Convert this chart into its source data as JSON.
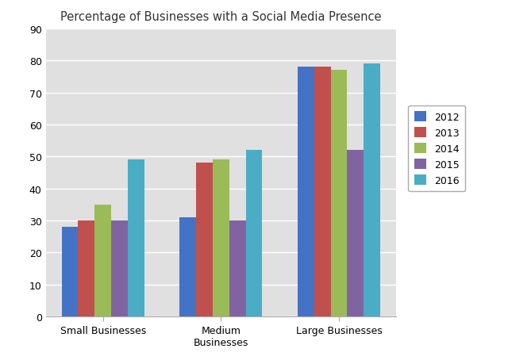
{
  "title": "Percentage of Businesses with a Social Media Presence",
  "categories": [
    "Small Businesses",
    "Medium\nBusinesses",
    "Large Businesses"
  ],
  "years": [
    "2012",
    "2013",
    "2014",
    "2015",
    "2016"
  ],
  "values": {
    "2012": [
      28,
      31,
      78
    ],
    "2013": [
      30,
      48,
      78
    ],
    "2014": [
      35,
      49,
      77
    ],
    "2015": [
      30,
      30,
      52
    ],
    "2016": [
      49,
      52,
      79
    ]
  },
  "colors": {
    "2012": "#4472C4",
    "2013": "#C0504D",
    "2014": "#9BBB59",
    "2015": "#8064A2",
    "2016": "#4BACC6"
  },
  "ylim": [
    0,
    90
  ],
  "yticks": [
    0,
    10,
    20,
    30,
    40,
    50,
    60,
    70,
    80,
    90
  ],
  "plot_bg_color": "#E0E0E0",
  "fig_bg_color": "#FFFFFF",
  "grid_color": "#FFFFFF",
  "bar_width": 0.14
}
